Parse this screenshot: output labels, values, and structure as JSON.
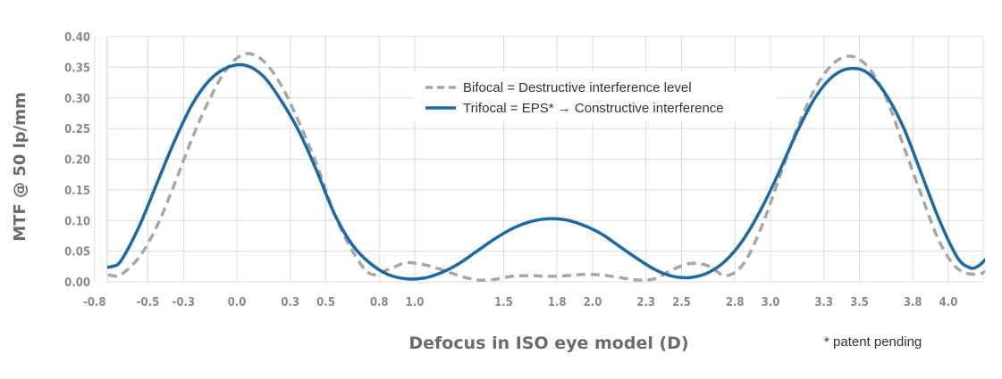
{
  "chart_data": {
    "type": "line",
    "xlabel": "Defocus in ISO eye model (D)",
    "ylabel": "MTF @ 50 lp/mm",
    "xlim": [
      -0.8,
      4.2
    ],
    "ylim": [
      0,
      0.4
    ],
    "x_ticks": [
      -0.8,
      -0.5,
      -0.3,
      0.0,
      0.3,
      0.5,
      0.8,
      1.0,
      1.5,
      1.8,
      2.0,
      2.3,
      2.5,
      2.8,
      3.0,
      3.3,
      3.5,
      3.8,
      4.0
    ],
    "x_tick_labels": [
      "-0.8",
      "-0.5",
      "-0.3",
      "0.0",
      "0.3",
      "0.5",
      "0.8",
      "1.0",
      "1.5",
      "1.8",
      "2.0",
      "2.3",
      "2.5",
      "2.8",
      "3.0",
      "3.3",
      "3.5",
      "3.8",
      "4.0"
    ],
    "y_ticks": [
      0,
      0.05,
      0.1,
      0.15,
      0.2,
      0.25,
      0.3,
      0.35,
      0.4
    ],
    "y_tick_labels": [
      "0.00",
      "0.05",
      "0.10",
      "0.15",
      "0.20",
      "0.25",
      "0.30",
      "0.35",
      "0.40"
    ],
    "grid": true,
    "legend_position": "top-center",
    "footnote": "* patent pending",
    "series": [
      {
        "name": "Bifocal = Destructive interference level",
        "style": "dashed",
        "color": "#a7a7a7",
        "points": [
          [
            -0.8,
            0.018
          ],
          [
            -0.7,
            0.01
          ],
          [
            -0.65,
            0.012
          ],
          [
            -0.55,
            0.04
          ],
          [
            -0.45,
            0.09
          ],
          [
            -0.35,
            0.16
          ],
          [
            -0.25,
            0.235
          ],
          [
            -0.15,
            0.3
          ],
          [
            -0.05,
            0.35
          ],
          [
            0.05,
            0.372
          ],
          [
            0.15,
            0.36
          ],
          [
            0.25,
            0.32
          ],
          [
            0.35,
            0.26
          ],
          [
            0.45,
            0.19
          ],
          [
            0.55,
            0.11
          ],
          [
            0.65,
            0.05
          ],
          [
            0.75,
            0.013
          ],
          [
            0.85,
            0.02
          ],
          [
            0.95,
            0.031
          ],
          [
            1.05,
            0.028
          ],
          [
            1.15,
            0.02
          ],
          [
            1.25,
            0.01
          ],
          [
            1.35,
            0.003
          ],
          [
            1.45,
            0.004
          ],
          [
            1.55,
            0.009
          ],
          [
            1.65,
            0.01
          ],
          [
            1.75,
            0.009
          ],
          [
            1.85,
            0.01
          ],
          [
            1.95,
            0.012
          ],
          [
            2.05,
            0.011
          ],
          [
            2.15,
            0.007
          ],
          [
            2.25,
            0.003
          ],
          [
            2.35,
            0.005
          ],
          [
            2.45,
            0.02
          ],
          [
            2.55,
            0.03
          ],
          [
            2.65,
            0.026
          ],
          [
            2.75,
            0.01
          ],
          [
            2.85,
            0.03
          ],
          [
            2.95,
            0.09
          ],
          [
            3.05,
            0.17
          ],
          [
            3.15,
            0.25
          ],
          [
            3.25,
            0.315
          ],
          [
            3.35,
            0.355
          ],
          [
            3.45,
            0.368
          ],
          [
            3.55,
            0.35
          ],
          [
            3.65,
            0.3
          ],
          [
            3.75,
            0.22
          ],
          [
            3.85,
            0.14
          ],
          [
            3.95,
            0.065
          ],
          [
            4.05,
            0.022
          ],
          [
            4.15,
            0.012
          ],
          [
            4.22,
            0.018
          ]
        ]
      },
      {
        "name": "Trifocal = EPS* → Constructive interference",
        "style": "solid",
        "color": "#1a6aa9",
        "points": [
          [
            -0.8,
            0.028
          ],
          [
            -0.75,
            0.024
          ],
          [
            -0.7,
            0.025
          ],
          [
            -0.65,
            0.035
          ],
          [
            -0.55,
            0.09
          ],
          [
            -0.45,
            0.16
          ],
          [
            -0.35,
            0.23
          ],
          [
            -0.25,
            0.29
          ],
          [
            -0.15,
            0.33
          ],
          [
            -0.05,
            0.35
          ],
          [
            0.05,
            0.353
          ],
          [
            0.15,
            0.335
          ],
          [
            0.25,
            0.295
          ],
          [
            0.35,
            0.245
          ],
          [
            0.45,
            0.18
          ],
          [
            0.55,
            0.11
          ],
          [
            0.65,
            0.06
          ],
          [
            0.75,
            0.03
          ],
          [
            0.85,
            0.012
          ],
          [
            0.95,
            0.005
          ],
          [
            1.05,
            0.006
          ],
          [
            1.15,
            0.015
          ],
          [
            1.25,
            0.03
          ],
          [
            1.35,
            0.05
          ],
          [
            1.45,
            0.07
          ],
          [
            1.55,
            0.087
          ],
          [
            1.65,
            0.098
          ],
          [
            1.75,
            0.103
          ],
          [
            1.85,
            0.101
          ],
          [
            1.95,
            0.092
          ],
          [
            2.05,
            0.078
          ],
          [
            2.15,
            0.058
          ],
          [
            2.25,
            0.038
          ],
          [
            2.35,
            0.02
          ],
          [
            2.45,
            0.009
          ],
          [
            2.55,
            0.007
          ],
          [
            2.65,
            0.015
          ],
          [
            2.75,
            0.035
          ],
          [
            2.85,
            0.07
          ],
          [
            2.95,
            0.12
          ],
          [
            3.05,
            0.18
          ],
          [
            3.15,
            0.245
          ],
          [
            3.25,
            0.3
          ],
          [
            3.35,
            0.335
          ],
          [
            3.45,
            0.348
          ],
          [
            3.55,
            0.34
          ],
          [
            3.65,
            0.305
          ],
          [
            3.75,
            0.25
          ],
          [
            3.85,
            0.175
          ],
          [
            3.95,
            0.1
          ],
          [
            4.05,
            0.04
          ],
          [
            4.12,
            0.023
          ],
          [
            4.17,
            0.026
          ],
          [
            4.22,
            0.04
          ]
        ]
      }
    ]
  }
}
